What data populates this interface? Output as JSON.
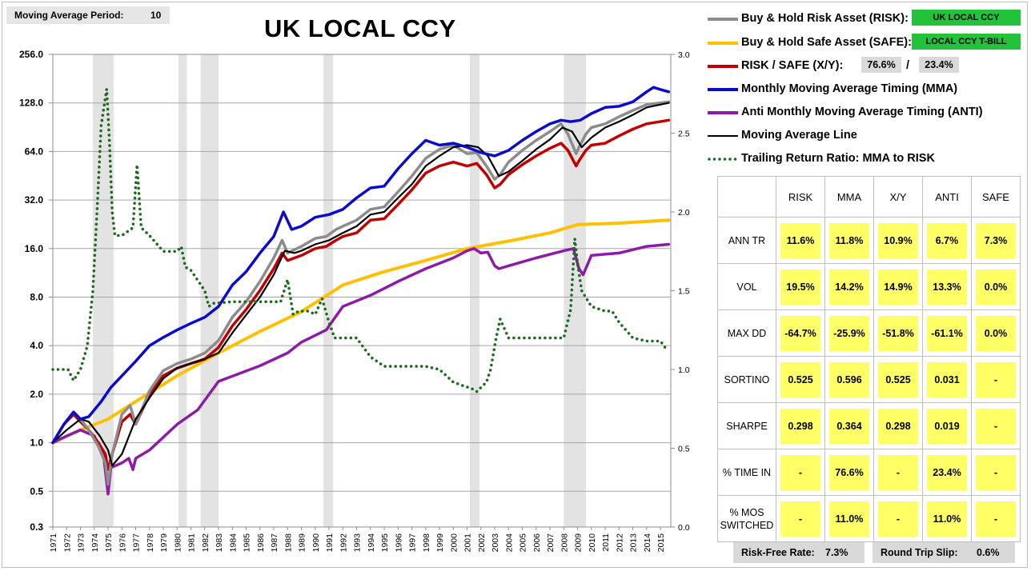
{
  "header": {
    "ma_label": "Moving Average Period:",
    "ma_value": "10",
    "title": "UK LOCAL CCY"
  },
  "legend": {
    "risk": {
      "label": "Buy & Hold Risk Asset (RISK):",
      "tag": "UK LOCAL CCY",
      "color": "#8c8c8c"
    },
    "safe": {
      "label": "Buy & Hold Safe Asset (SAFE):",
      "tag": "LOCAL CCY T-BILL",
      "color": "#ffc000"
    },
    "xy": {
      "label": "RISK / SAFE (X/Y):",
      "risk_weight": "76.6%",
      "sep": "/",
      "safe_weight": "23.4%",
      "color": "#c00000"
    },
    "mma": {
      "label": "Monthly Moving Average Timing (MMA)",
      "color": "#0b0bc8"
    },
    "anti": {
      "label": "Anti Monthly Moving Average Timing (ANTI)",
      "color": "#8e1ba6"
    },
    "ma_line": {
      "label": "Moving Average Line",
      "color": "#000000"
    },
    "ratio": {
      "label": "Trailing Return Ratio: MMA to RISK",
      "color": "#1e6b1e"
    }
  },
  "stats": {
    "columns": [
      "RISK",
      "MMA",
      "X/Y",
      "ANTI",
      "SAFE"
    ],
    "rows": [
      {
        "label": "ANN TR",
        "values": [
          "11.6%",
          "11.8%",
          "10.9%",
          "6.7%",
          "7.3%"
        ]
      },
      {
        "label": "VOL",
        "values": [
          "19.5%",
          "14.2%",
          "14.9%",
          "13.3%",
          "0.0%"
        ]
      },
      {
        "label": "MAX DD",
        "values": [
          "-64.7%",
          "-25.9%",
          "-51.8%",
          "-61.1%",
          "0.0%"
        ]
      },
      {
        "label": "SORTINO",
        "values": [
          "0.525",
          "0.596",
          "0.525",
          "0.031",
          "-"
        ]
      },
      {
        "label": "SHARPE",
        "values": [
          "0.298",
          "0.364",
          "0.298",
          "0.019",
          "-"
        ]
      },
      {
        "label": "% TIME IN",
        "values": [
          "-",
          "76.6%",
          "-",
          "23.4%",
          "-"
        ]
      },
      {
        "label": "% MOS SWITCHED",
        "values": [
          "-",
          "11.0%",
          "-",
          "11.0%",
          "-"
        ]
      }
    ]
  },
  "footer": {
    "rf_label": "Risk-Free Rate:",
    "rf_value": "7.3%",
    "slip_label": "Round Trip Slip:",
    "slip_value": "0.6%"
  },
  "chart_data": {
    "type": "line",
    "y_scale": "log2",
    "ylim": [
      0.3,
      256
    ],
    "y_ticks": [
      "0.3",
      "0.5",
      "1.0",
      "2.0",
      "4.0",
      "8.0",
      "16.0",
      "32.0",
      "64.0",
      "128.0",
      "256.0"
    ],
    "y_tick_values": [
      0.3,
      0.5,
      1,
      2,
      4,
      8,
      16,
      32,
      64,
      128,
      256
    ],
    "y2lim": [
      0.0,
      3.0
    ],
    "y2_ticks": [
      "0.0",
      "0.5",
      "1.0",
      "1.5",
      "2.0",
      "2.5",
      "3.0"
    ],
    "x_ticks": [
      "1971",
      "1972",
      "1973",
      "1974",
      "1975",
      "1976",
      "1977",
      "1978",
      "1979",
      "1980",
      "1981",
      "1982",
      "1983",
      "1984",
      "1985",
      "1986",
      "1987",
      "1988",
      "1989",
      "1990",
      "1991",
      "1992",
      "1993",
      "1994",
      "1995",
      "1996",
      "1997",
      "1998",
      "1999",
      "2000",
      "2001",
      "2002",
      "2003",
      "2004",
      "2005",
      "2006",
      "2007",
      "2008",
      "2009",
      "2010",
      "2011",
      "2012",
      "2013",
      "2014",
      "2015"
    ],
    "xlim": [
      1971.0,
      2015.75
    ],
    "grid": true,
    "shaded_periods": [
      [
        1973.9,
        1975.4
      ],
      [
        1980.1,
        1980.7
      ],
      [
        1981.7,
        1983.0
      ],
      [
        1990.6,
        1991.3
      ],
      [
        2001.2,
        2001.9
      ],
      [
        2008.0,
        2009.6
      ]
    ],
    "series": [
      {
        "key": "safe",
        "color": "#ffc000",
        "width": 4,
        "x": [
          1971,
          1973,
          1975,
          1977,
          1980,
          1983,
          1986,
          1989,
          1992,
          1995,
          1998,
          2001,
          2004,
          2007,
          2009,
          2012,
          2015.6
        ],
        "y": [
          1.0,
          1.2,
          1.4,
          1.8,
          2.6,
          3.6,
          4.9,
          6.5,
          9.5,
          11.5,
          13.5,
          16.0,
          17.8,
          20.0,
          22.5,
          23.0,
          24.0
        ]
      },
      {
        "key": "anti",
        "color": "#8e1ba6",
        "width": 3.5,
        "x": [
          1971,
          1972,
          1973,
          1974,
          1974.7,
          1975.0,
          1975.2,
          1976,
          1976.5,
          1976.8,
          1977,
          1978,
          1980,
          1981.5,
          1983,
          1986,
          1988,
          1989,
          1990.8,
          1991.2,
          1992,
          1994,
          1996,
          1998,
          2000,
          2001.0,
          2001.5,
          2002,
          2002.5,
          2003,
          2003.3,
          2004,
          2006,
          2008,
          2008.7,
          2009.1,
          2009.4,
          2010,
          2012,
          2014,
          2015.6
        ],
        "y": [
          1.0,
          1.1,
          1.2,
          1.1,
          0.8,
          0.48,
          0.7,
          0.75,
          0.8,
          0.68,
          0.8,
          0.9,
          1.3,
          1.6,
          2.4,
          3.0,
          3.6,
          4.2,
          5.0,
          5.6,
          7.0,
          8.2,
          10.0,
          12.0,
          14.0,
          15.5,
          16.0,
          15.0,
          15.2,
          12.5,
          12.0,
          12.5,
          14.0,
          15.5,
          16.0,
          12.0,
          11.0,
          14.5,
          15.0,
          16.5,
          17.0
        ]
      },
      {
        "key": "xy",
        "color": "#c00000",
        "width": 3.5,
        "x": [
          1971,
          1971.8,
          1972.5,
          1973,
          1973.6,
          1974.3,
          1974.8,
          1975.0,
          1975.3,
          1976,
          1976.6,
          1977,
          1978,
          1979,
          1980,
          1981,
          1982,
          1983,
          1984,
          1985,
          1986,
          1987,
          1987.6,
          1988,
          1989,
          1990,
          1990.8,
          1991.5,
          1992,
          1993,
          1994,
          1995,
          1996,
          1997,
          1998,
          1999,
          2000,
          2001,
          2001.7,
          2002.4,
          2003,
          2003.4,
          2004,
          2005,
          2006,
          2007,
          2007.8,
          2008.3,
          2008.9,
          2009.1,
          2009.6,
          2010,
          2011,
          2012,
          2013,
          2014,
          2015.6
        ],
        "y": [
          1.0,
          1.3,
          1.5,
          1.35,
          1.2,
          1.0,
          0.85,
          0.68,
          0.85,
          1.35,
          1.5,
          1.3,
          2.0,
          2.6,
          2.9,
          3.1,
          3.3,
          3.9,
          5.3,
          6.7,
          8.8,
          12.0,
          15.0,
          13.5,
          14.5,
          16.0,
          16.5,
          18.0,
          19.0,
          20.0,
          24.0,
          24.5,
          30.0,
          37.0,
          47.0,
          52.0,
          55.0,
          52.0,
          54.0,
          46.0,
          38.0,
          40.0,
          46.0,
          53.0,
          60.0,
          67.0,
          72.0,
          65.0,
          52.0,
          56.0,
          65.0,
          70.0,
          72.0,
          80.0,
          88.0,
          95.0,
          100.0
        ]
      },
      {
        "key": "risk",
        "color": "#8c8c8c",
        "width": 3.5,
        "x": [
          1971,
          1971.8,
          1972.5,
          1973,
          1973.6,
          1974.3,
          1974.8,
          1975.0,
          1975.3,
          1976,
          1976.6,
          1977,
          1978,
          1979,
          1980,
          1981,
          1982,
          1983,
          1984,
          1985,
          1986,
          1987,
          1987.6,
          1988,
          1989,
          1990,
          1990.8,
          1991.5,
          1992,
          1993,
          1994,
          1995,
          1996,
          1997,
          1998,
          1999,
          2000,
          2001,
          2001.7,
          2002.4,
          2003,
          2003.4,
          2004,
          2005,
          2006,
          2007,
          2007.8,
          2008.3,
          2008.9,
          2009.1,
          2009.6,
          2010,
          2011,
          2012,
          2013,
          2014,
          2015.6
        ],
        "y": [
          1.0,
          1.3,
          1.55,
          1.4,
          1.2,
          0.95,
          0.75,
          0.55,
          0.85,
          1.5,
          1.7,
          1.3,
          2.1,
          2.8,
          3.1,
          3.3,
          3.6,
          4.3,
          6.0,
          7.5,
          10.0,
          14.0,
          18.0,
          15.0,
          16.5,
          18.5,
          19.0,
          21.0,
          22.0,
          24.0,
          28.0,
          29.0,
          36.0,
          45.0,
          58.0,
          66.0,
          70.0,
          62.0,
          63.0,
          52.0,
          43.0,
          46.0,
          55.0,
          65.0,
          75.0,
          85.0,
          95.0,
          82.0,
          62.0,
          68.0,
          82.0,
          90.0,
          95.0,
          105.0,
          115.0,
          125.0,
          130.0
        ]
      },
      {
        "key": "ma_line",
        "color": "#000000",
        "width": 2.2,
        "x": [
          1971,
          1972,
          1973,
          1973.6,
          1974.4,
          1975.0,
          1975.3,
          1976,
          1977,
          1978,
          1979,
          1980,
          1981,
          1982,
          1983,
          1984,
          1985,
          1986,
          1987,
          1987.8,
          1988.5,
          1989,
          1990,
          1991,
          1992,
          1993,
          1994,
          1995,
          1996,
          1997,
          1998,
          1999,
          2000,
          2001,
          2001.8,
          2002.5,
          2003.3,
          2004,
          2005,
          2006,
          2007,
          2007.9,
          2008.6,
          2009.3,
          2010,
          2011,
          2012,
          2013,
          2014,
          2015.6
        ],
        "y": [
          1.0,
          1.2,
          1.4,
          1.35,
          1.1,
          0.9,
          0.72,
          0.85,
          1.4,
          1.9,
          2.5,
          2.9,
          3.1,
          3.3,
          3.6,
          4.8,
          6.2,
          8.0,
          11.0,
          15.5,
          15.0,
          15.5,
          17.0,
          18.0,
          20.0,
          22.0,
          26.0,
          27.0,
          33.0,
          40.0,
          52.0,
          60.0,
          68.0,
          70.0,
          68.0,
          60.0,
          45.0,
          48.0,
          56.0,
          66.0,
          76.0,
          90.0,
          85.0,
          68.0,
          78.0,
          90.0,
          98.0,
          108.0,
          120.0,
          128.0
        ]
      },
      {
        "key": "mma",
        "color": "#0b0bc8",
        "width": 3.5,
        "x": [
          1971,
          1971.8,
          1972.5,
          1973,
          1973.6,
          1974.5,
          1975.2,
          1976,
          1977,
          1978,
          1979,
          1980,
          1981,
          1982,
          1983,
          1984,
          1985,
          1986,
          1987,
          1987.7,
          1988.3,
          1989,
          1990,
          1991,
          1992,
          1993,
          1994,
          1995,
          1996,
          1997,
          1998,
          1999,
          2000,
          2001,
          2002,
          2003,
          2004,
          2005,
          2006,
          2007,
          2007.8,
          2008.5,
          2009.2,
          2010,
          2011,
          2012,
          2013,
          2014,
          2014.5,
          2015,
          2015.6
        ],
        "y": [
          1.0,
          1.3,
          1.55,
          1.4,
          1.45,
          1.8,
          2.2,
          2.6,
          3.2,
          4.0,
          4.5,
          5.0,
          5.5,
          6.0,
          7.0,
          9.5,
          11.5,
          15.0,
          19.0,
          27.0,
          21.0,
          22.0,
          25.0,
          26.0,
          28.0,
          33.0,
          38.0,
          39.0,
          50.0,
          62.0,
          75.0,
          70.0,
          72.0,
          68.0,
          63.0,
          60.0,
          65.0,
          75.0,
          85.0,
          95.0,
          100.0,
          98.0,
          100.0,
          110.0,
          120.0,
          122.0,
          130.0,
          150.0,
          160.0,
          155.0,
          150.0
        ]
      },
      {
        "key": "ratio",
        "color": "#1e6b1e",
        "width": 3.6,
        "axis": "right",
        "dotted": true,
        "x": [
          1971,
          1972.1,
          1972.5,
          1973,
          1973.5,
          1973.9,
          1974.2,
          1974.5,
          1974.9,
          1975.1,
          1975.3,
          1975.5,
          1976,
          1976.8,
          1977.1,
          1977.4,
          1978,
          1979,
          1980,
          1980.3,
          1980.6,
          1981,
          1982,
          1982.3,
          1982.6,
          1984,
          1986,
          1987.5,
          1988,
          1988.4,
          1988.8,
          1989.5,
          1990,
          1990.5,
          1991,
          1991.4,
          1991.8,
          1992.2,
          1993,
          1994,
          1995,
          1996,
          1997,
          1998,
          1999,
          2000,
          2000.6,
          2001.3,
          2001.7,
          2002.4,
          2002.7,
          2003.1,
          2003.4,
          2004,
          2006,
          2008,
          2008.5,
          2008.8,
          2009.0,
          2009.3,
          2010,
          2011,
          2011.5,
          2012,
          2013,
          2014,
          2015,
          2015.5
        ],
        "y": [
          1.0,
          1.0,
          0.93,
          1.0,
          1.15,
          1.5,
          2.0,
          2.55,
          2.78,
          2.45,
          2.0,
          1.85,
          1.85,
          1.9,
          2.3,
          1.9,
          1.85,
          1.75,
          1.75,
          1.78,
          1.65,
          1.63,
          1.5,
          1.4,
          1.42,
          1.43,
          1.43,
          1.43,
          1.57,
          1.35,
          1.37,
          1.37,
          1.35,
          1.45,
          1.3,
          1.2,
          1.2,
          1.2,
          1.2,
          1.08,
          1.02,
          1.02,
          1.02,
          1.02,
          1.0,
          0.92,
          0.9,
          0.88,
          0.86,
          0.92,
          1.0,
          1.2,
          1.32,
          1.2,
          1.2,
          1.2,
          1.38,
          1.83,
          1.67,
          1.5,
          1.4,
          1.37,
          1.37,
          1.3,
          1.2,
          1.18,
          1.18,
          1.12
        ]
      }
    ]
  }
}
